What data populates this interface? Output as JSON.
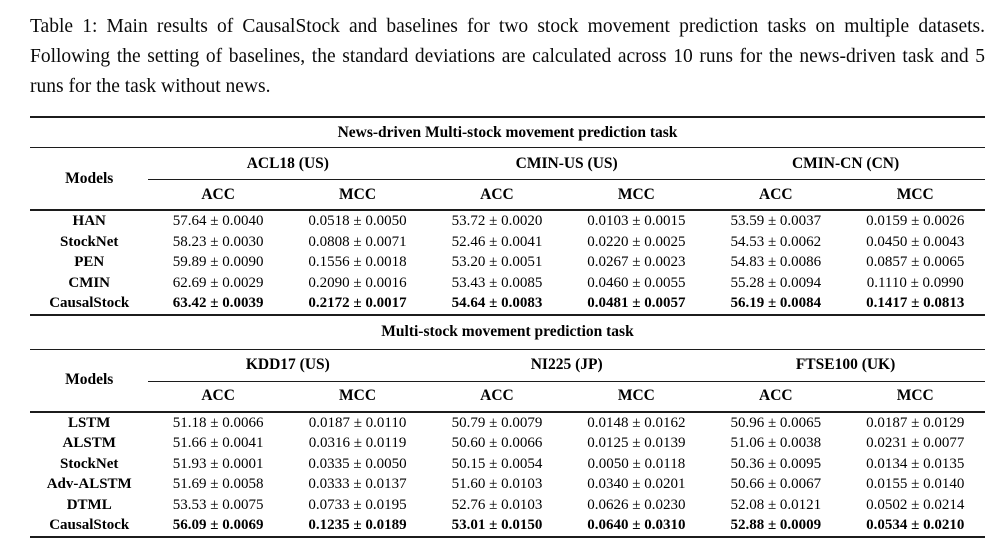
{
  "page": {
    "caption": "Table 1: Main results of CausalStock and baselines for two stock movement prediction tasks on multiple datasets. Following the setting of baselines, the standard deviations are calculated across 10 runs for the news-driven task and 5 runs for the task without news."
  },
  "tables": [
    {
      "section_title": "News-driven Multi-stock movement prediction task",
      "models_header": "Models",
      "datasets": [
        "ACL18 (US)",
        "CMIN-US (US)",
        "CMIN-CN (CN)"
      ],
      "metrics": [
        "ACC",
        "MCC"
      ],
      "rows": [
        {
          "model": "HAN",
          "best": false,
          "values": [
            "57.64 ± 0.0040",
            "0.0518 ± 0.0050",
            "53.72 ± 0.0020",
            "0.0103 ± 0.0015",
            "53.59 ± 0.0037",
            "0.0159 ± 0.0026"
          ]
        },
        {
          "model": "StockNet",
          "best": false,
          "values": [
            "58.23 ± 0.0030",
            "0.0808 ± 0.0071",
            "52.46 ± 0.0041",
            "0.0220 ± 0.0025",
            "54.53 ± 0.0062",
            "0.0450 ± 0.0043"
          ]
        },
        {
          "model": "PEN",
          "best": false,
          "values": [
            "59.89 ± 0.0090",
            "0.1556 ± 0.0018",
            "53.20 ± 0.0051",
            "0.0267 ± 0.0023",
            "54.83 ± 0.0086",
            "0.0857 ± 0.0065"
          ]
        },
        {
          "model": "CMIN",
          "best": false,
          "values": [
            "62.69 ± 0.0029",
            "0.2090 ± 0.0016",
            "53.43 ± 0.0085",
            "0.0460 ± 0.0055",
            "55.28 ± 0.0094",
            "0.1110 ± 0.0990"
          ]
        },
        {
          "model": "CausalStock",
          "best": true,
          "values": [
            "63.42 ± 0.0039",
            "0.2172 ± 0.0017",
            "54.64 ± 0.0083",
            "0.0481 ± 0.0057",
            "56.19 ± 0.0084",
            "0.1417 ± 0.0813"
          ]
        }
      ]
    },
    {
      "section_title": "Multi-stock movement prediction task",
      "models_header": "Models",
      "datasets": [
        "KDD17 (US)",
        "NI225 (JP)",
        "FTSE100 (UK)"
      ],
      "metrics": [
        "ACC",
        "MCC"
      ],
      "rows": [
        {
          "model": "LSTM",
          "best": false,
          "values": [
            "51.18 ± 0.0066",
            "0.0187 ± 0.0110",
            "50.79 ± 0.0079",
            "0.0148 ± 0.0162",
            "50.96 ± 0.0065",
            "0.0187 ± 0.0129"
          ]
        },
        {
          "model": "ALSTM",
          "best": false,
          "values": [
            "51.66 ± 0.0041",
            "0.0316 ± 0.0119",
            "50.60 ± 0.0066",
            "0.0125 ± 0.0139",
            "51.06 ± 0.0038",
            "0.0231 ± 0.0077"
          ]
        },
        {
          "model": "StockNet",
          "best": false,
          "values": [
            "51.93 ± 0.0001",
            "0.0335 ± 0.0050",
            "50.15 ± 0.0054",
            "0.0050 ± 0.0118",
            "50.36 ± 0.0095",
            "0.0134 ± 0.0135"
          ]
        },
        {
          "model": "Adv-ALSTM",
          "best": false,
          "values": [
            "51.69 ± 0.0058",
            "0.0333 ± 0.0137",
            "51.60 ± 0.0103",
            "0.0340 ± 0.0201",
            "50.66 ± 0.0067",
            "0.0155 ± 0.0140"
          ]
        },
        {
          "model": "DTML",
          "best": false,
          "values": [
            "53.53 ± 0.0075",
            "0.0733 ± 0.0195",
            "52.76 ± 0.0103",
            "0.0626 ± 0.0230",
            "52.08 ± 0.0121",
            "0.0502 ± 0.0214"
          ]
        },
        {
          "model": "CausalStock",
          "best": true,
          "values": [
            "56.09 ± 0.0069",
            "0.1235 ± 0.0189",
            "53.01 ± 0.0150",
            "0.0640 ± 0.0310",
            "52.88 ± 0.0009",
            "0.0534 ± 0.0210"
          ]
        }
      ]
    }
  ]
}
